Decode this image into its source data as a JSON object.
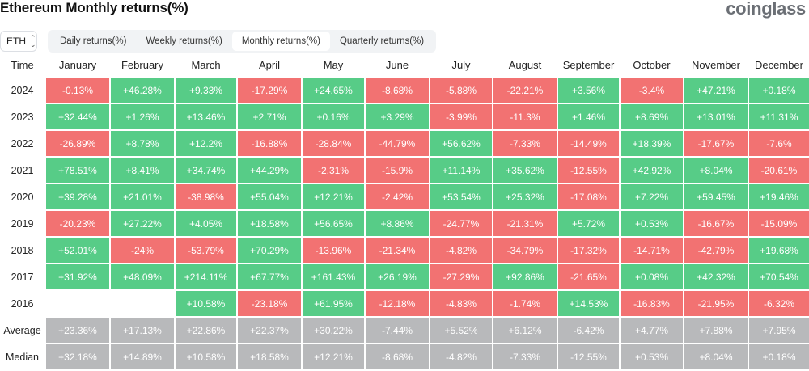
{
  "header": {
    "title": "Ethereum Monthly returns(%)",
    "logo": "coinglass"
  },
  "toolbar": {
    "asset": "ETH",
    "tabs": [
      {
        "label": "Daily returns(%)",
        "active": false
      },
      {
        "label": "Weekly returns(%)",
        "active": false
      },
      {
        "label": "Monthly returns(%)",
        "active": true
      },
      {
        "label": "Quarterly returns(%)",
        "active": false
      }
    ]
  },
  "colors": {
    "positive": "#57cc87",
    "negative": "#f27272",
    "summary": "#b8b9bb"
  },
  "table": {
    "corner": "Time",
    "months": [
      "January",
      "February",
      "March",
      "April",
      "May",
      "June",
      "July",
      "August",
      "September",
      "October",
      "November",
      "December"
    ],
    "rows": [
      {
        "label": "2024",
        "values": [
          "-0.13%",
          "+46.28%",
          "+9.33%",
          "-17.29%",
          "+24.65%",
          "-8.68%",
          "-5.88%",
          "-22.21%",
          "+3.56%",
          "-3.4%",
          "+47.21%",
          "+0.18%"
        ]
      },
      {
        "label": "2023",
        "values": [
          "+32.44%",
          "+1.26%",
          "+13.46%",
          "+2.71%",
          "+0.16%",
          "+3.29%",
          "-3.99%",
          "-11.3%",
          "+1.46%",
          "+8.69%",
          "+13.01%",
          "+11.31%"
        ]
      },
      {
        "label": "2022",
        "values": [
          "-26.89%",
          "+8.78%",
          "+12.2%",
          "-16.88%",
          "-28.84%",
          "-44.79%",
          "+56.62%",
          "-7.33%",
          "-14.49%",
          "+18.39%",
          "-17.67%",
          "-7.6%"
        ]
      },
      {
        "label": "2021",
        "values": [
          "+78.51%",
          "+8.41%",
          "+34.74%",
          "+44.29%",
          "-2.31%",
          "-15.9%",
          "+11.14%",
          "+35.62%",
          "-12.55%",
          "+42.92%",
          "+8.04%",
          "-20.61%"
        ]
      },
      {
        "label": "2020",
        "values": [
          "+39.28%",
          "+21.01%",
          "-38.98%",
          "+55.04%",
          "+12.21%",
          "-2.42%",
          "+53.54%",
          "+25.32%",
          "-17.08%",
          "+7.22%",
          "+59.45%",
          "+19.46%"
        ]
      },
      {
        "label": "2019",
        "values": [
          "-20.23%",
          "+27.22%",
          "+4.05%",
          "+18.58%",
          "+56.65%",
          "+8.86%",
          "-24.77%",
          "-21.31%",
          "+5.72%",
          "+0.53%",
          "-16.67%",
          "-15.09%"
        ]
      },
      {
        "label": "2018",
        "values": [
          "+52.01%",
          "-24%",
          "-53.79%",
          "+70.29%",
          "-13.96%",
          "-21.34%",
          "-4.82%",
          "-34.79%",
          "-17.32%",
          "-14.71%",
          "-42.79%",
          "+19.68%"
        ]
      },
      {
        "label": "2017",
        "values": [
          "+31.92%",
          "+48.09%",
          "+214.11%",
          "+67.77%",
          "+161.43%",
          "+26.19%",
          "-27.29%",
          "+92.86%",
          "-21.65%",
          "+0.08%",
          "+42.32%",
          "+70.54%"
        ]
      },
      {
        "label": "2016",
        "values": [
          "",
          "",
          "+10.58%",
          "-23.18%",
          "+61.95%",
          "-12.18%",
          "-4.83%",
          "-1.74%",
          "+14.53%",
          "-16.83%",
          "-21.95%",
          "-6.32%"
        ]
      }
    ],
    "summary": [
      {
        "label": "Average",
        "values": [
          "+23.36%",
          "+17.13%",
          "+22.86%",
          "+22.37%",
          "+30.22%",
          "-7.44%",
          "+5.52%",
          "+6.12%",
          "-6.42%",
          "+4.77%",
          "+7.88%",
          "+7.95%"
        ]
      },
      {
        "label": "Median",
        "values": [
          "+32.18%",
          "+14.89%",
          "+10.58%",
          "+18.58%",
          "+12.21%",
          "-8.68%",
          "-4.82%",
          "-7.33%",
          "-12.55%",
          "+0.53%",
          "+8.04%",
          "+0.18%"
        ]
      }
    ]
  }
}
